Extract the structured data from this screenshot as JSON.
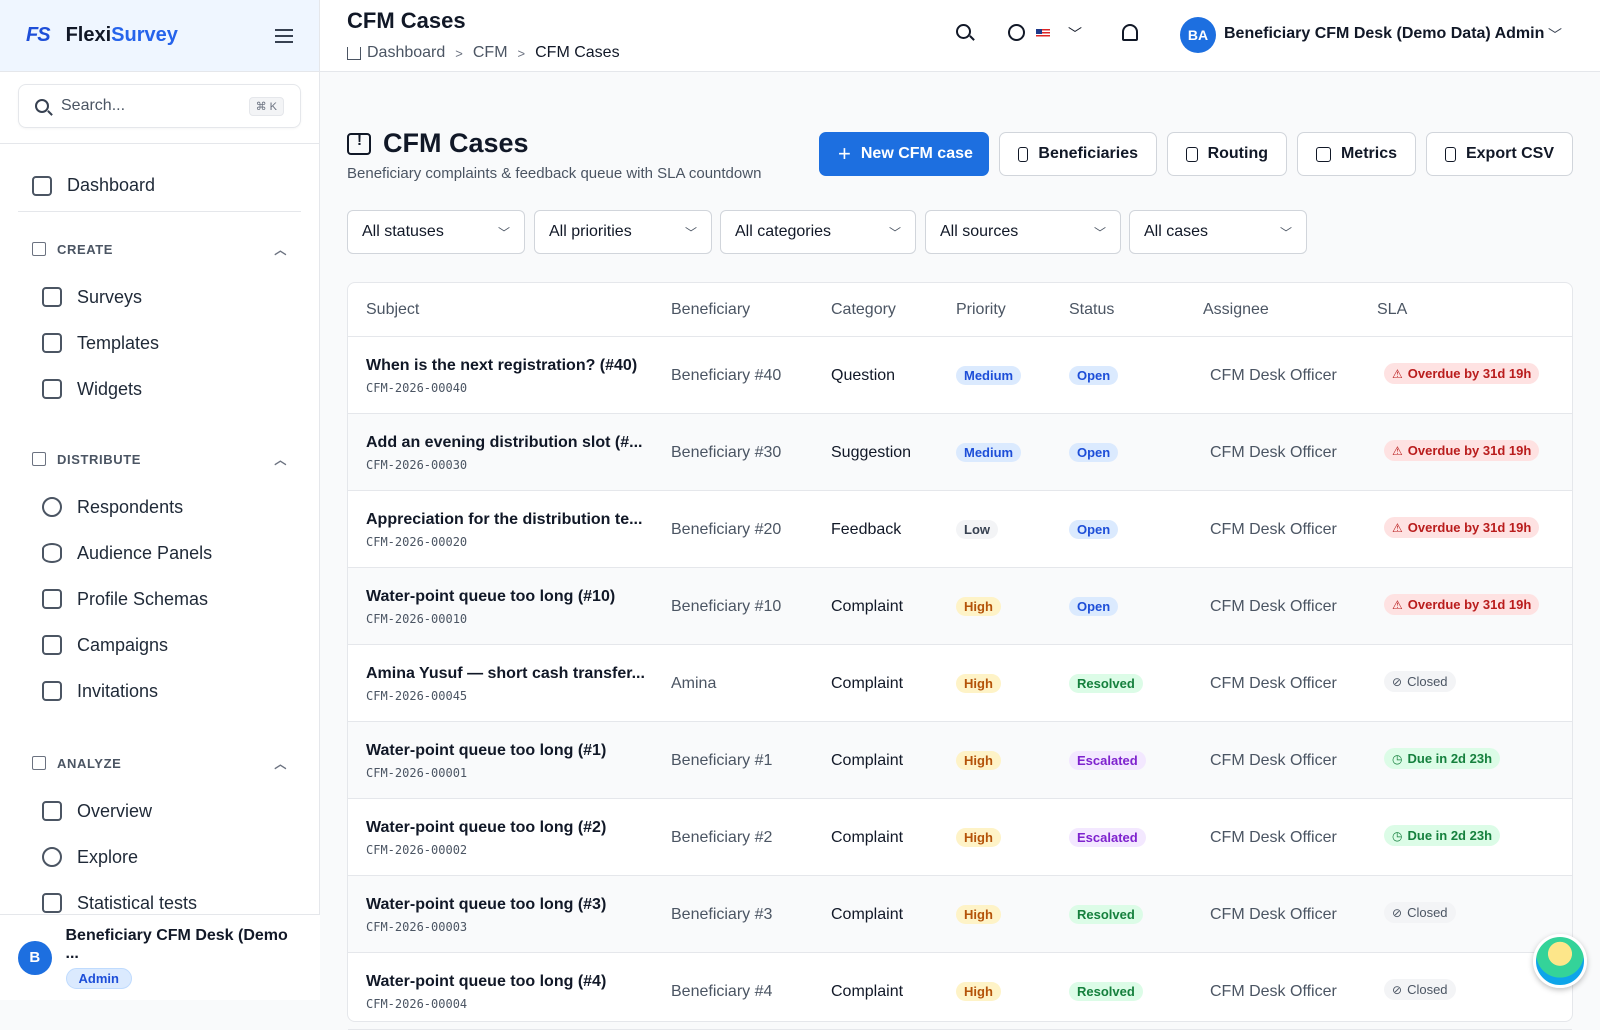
{
  "brand": {
    "logo": "FS",
    "name_a": "Flexi",
    "name_b": "Survey"
  },
  "sidebar": {
    "search_placeholder": "Search...",
    "search_shortcut": "⌘ K",
    "dashboard": "Dashboard",
    "sections": [
      {
        "title": "CREATE",
        "items": [
          "Surveys",
          "Templates",
          "Widgets"
        ]
      },
      {
        "title": "DISTRIBUTE",
        "items": [
          "Respondents",
          "Audience Panels",
          "Profile Schemas",
          "Campaigns",
          "Invitations"
        ]
      },
      {
        "title": "ANALYZE",
        "items": [
          "Overview",
          "Explore",
          "Statistical tests"
        ]
      }
    ],
    "user": {
      "initial": "B",
      "name": "Beneficiary CFM Desk (Demo ...",
      "role": "Admin"
    }
  },
  "topbar": {
    "title": "CFM Cases",
    "breadcrumbs": [
      "Dashboard",
      "CFM",
      "CFM Cases"
    ],
    "user_initials": "BA",
    "user_name": "Beneficiary CFM Desk (Demo Data) Admin"
  },
  "page": {
    "title": "CFM Cases",
    "subtitle": "Beneficiary complaints & feedback queue with SLA countdown",
    "actions": {
      "new": "New CFM case",
      "beneficiaries": "Beneficiaries",
      "routing": "Routing",
      "metrics": "Metrics",
      "export": "Export CSV"
    },
    "filters": [
      "All statuses",
      "All priorities",
      "All categories",
      "All sources",
      "All cases"
    ]
  },
  "table": {
    "headers": [
      "Subject",
      "Beneficiary",
      "Category",
      "Priority",
      "Status",
      "Assignee",
      "SLA"
    ],
    "rows": [
      {
        "subject": "When is the next registration? (#40)",
        "code": "CFM-2026-00040",
        "beneficiary": "Beneficiary #40",
        "category": "Question",
        "priority": "Medium",
        "status": "Open",
        "assignee": "CFM Desk Officer",
        "sla": "Overdue by 31d 19h"
      },
      {
        "subject": "Add an evening distribution slot (#...",
        "code": "CFM-2026-00030",
        "beneficiary": "Beneficiary #30",
        "category": "Suggestion",
        "priority": "Medium",
        "status": "Open",
        "assignee": "CFM Desk Officer",
        "sla": "Overdue by 31d 19h"
      },
      {
        "subject": "Appreciation for the distribution te...",
        "code": "CFM-2026-00020",
        "beneficiary": "Beneficiary #20",
        "category": "Feedback",
        "priority": "Low",
        "status": "Open",
        "assignee": "CFM Desk Officer",
        "sla": "Overdue by 31d 19h"
      },
      {
        "subject": "Water-point queue too long (#10)",
        "code": "CFM-2026-00010",
        "beneficiary": "Beneficiary #10",
        "category": "Complaint",
        "priority": "High",
        "status": "Open",
        "assignee": "CFM Desk Officer",
        "sla": "Overdue by 31d 19h"
      },
      {
        "subject": "Amina Yusuf — short cash transfer...",
        "code": "CFM-2026-00045",
        "beneficiary": "Amina",
        "category": "Complaint",
        "priority": "High",
        "status": "Resolved",
        "assignee": "CFM Desk Officer",
        "sla": "Closed"
      },
      {
        "subject": "Water-point queue too long (#1)",
        "code": "CFM-2026-00001",
        "beneficiary": "Beneficiary #1",
        "category": "Complaint",
        "priority": "High",
        "status": "Escalated",
        "assignee": "CFM Desk Officer",
        "sla": "Due in 2d 23h"
      },
      {
        "subject": "Water-point queue too long (#2)",
        "code": "CFM-2026-00002",
        "beneficiary": "Beneficiary #2",
        "category": "Complaint",
        "priority": "High",
        "status": "Escalated",
        "assignee": "CFM Desk Officer",
        "sla": "Due in 2d 23h"
      },
      {
        "subject": "Water-point queue too long (#3)",
        "code": "CFM-2026-00003",
        "beneficiary": "Beneficiary #3",
        "category": "Complaint",
        "priority": "High",
        "status": "Resolved",
        "assignee": "CFM Desk Officer",
        "sla": "Closed"
      },
      {
        "subject": "Water-point queue too long (#4)",
        "code": "CFM-2026-00004",
        "beneficiary": "Beneficiary #4",
        "category": "Complaint",
        "priority": "High",
        "status": "Resolved",
        "assignee": "CFM Desk Officer",
        "sla": "Closed"
      }
    ]
  }
}
